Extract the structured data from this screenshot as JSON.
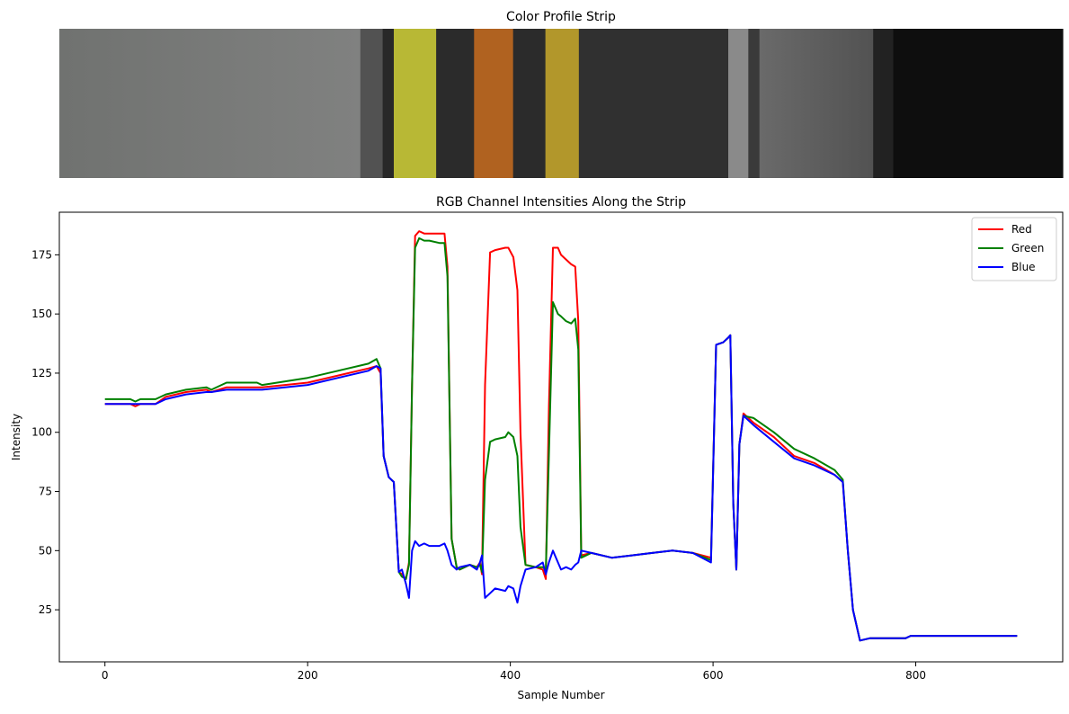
{
  "chart_data": [
    {
      "type": "heatmap",
      "title": "Color Profile Strip",
      "axis": "off",
      "x_range": [
        0,
        900
      ],
      "segments": [
        {
          "start": 0,
          "end": 270,
          "color_start": "#707270",
          "color_end": "#808180"
        },
        {
          "start": 270,
          "end": 290,
          "color_start": "#525252",
          "color_end": "#525252"
        },
        {
          "start": 290,
          "end": 300,
          "color_start": "#282828",
          "color_end": "#282828"
        },
        {
          "start": 300,
          "end": 338,
          "color_start": "#b8b835",
          "color_end": "#b8b835"
        },
        {
          "start": 338,
          "end": 372,
          "color_start": "#2b2b2b",
          "color_end": "#2b2b2b"
        },
        {
          "start": 372,
          "end": 407,
          "color_start": "#b06220",
          "color_end": "#b06220"
        },
        {
          "start": 407,
          "end": 436,
          "color_start": "#2b2b2b",
          "color_end": "#2b2b2b"
        },
        {
          "start": 436,
          "end": 466,
          "color_start": "#b2972b",
          "color_end": "#b2972b"
        },
        {
          "start": 466,
          "end": 600,
          "color_start": "#303030",
          "color_end": "#303030"
        },
        {
          "start": 600,
          "end": 618,
          "color_start": "#8a8a8a",
          "color_end": "#8a8a8a"
        },
        {
          "start": 618,
          "end": 628,
          "color_start": "#3a3a3a",
          "color_end": "#3a3a3a"
        },
        {
          "start": 628,
          "end": 730,
          "color_start": "#6a6a6a",
          "color_end": "#525252"
        },
        {
          "start": 730,
          "end": 748,
          "color_start": "#222222",
          "color_end": "#222222"
        },
        {
          "start": 748,
          "end": 900,
          "color_start": "#0e0e0e",
          "color_end": "#0e0e0e"
        }
      ]
    },
    {
      "type": "line",
      "title": "RGB Channel Intensities Along the Strip",
      "xlabel": "Sample Number",
      "ylabel": "Intensity",
      "xlim": [
        -45,
        945
      ],
      "ylim": [
        3,
        193
      ],
      "xticks": [
        0,
        200,
        400,
        600,
        800
      ],
      "yticks": [
        25,
        50,
        75,
        100,
        125,
        150,
        175
      ],
      "legend": "top-right",
      "grid": false,
      "series": [
        {
          "name": "Red",
          "color": "#ff0000",
          "x": [
            0,
            25,
            30,
            35,
            50,
            60,
            80,
            100,
            105,
            120,
            150,
            155,
            200,
            230,
            260,
            268,
            272,
            275,
            280,
            285,
            290,
            293,
            297,
            300,
            303,
            306,
            310,
            315,
            320,
            330,
            335,
            338,
            342,
            347,
            350,
            360,
            367,
            370,
            372,
            375,
            380,
            385,
            395,
            398,
            403,
            407,
            410,
            415,
            425,
            432,
            435,
            438,
            442,
            447,
            450,
            455,
            460,
            464,
            467,
            470,
            480,
            500,
            520,
            540,
            560,
            580,
            598,
            603,
            610,
            615,
            617,
            620,
            623,
            626,
            630,
            640,
            660,
            680,
            700,
            720,
            728,
            733,
            738,
            745,
            755,
            790,
            795,
            900
          ],
          "y": [
            112,
            112,
            111,
            112,
            112,
            115,
            117,
            118,
            117,
            119,
            119,
            119,
            121,
            124,
            127,
            128,
            125,
            90,
            81,
            79,
            41,
            40,
            38,
            45,
            120,
            183,
            185,
            184,
            184,
            184,
            184,
            170,
            55,
            43,
            42,
            44,
            43,
            45,
            40,
            120,
            176,
            177,
            178,
            178,
            174,
            160,
            100,
            44,
            43,
            42,
            38,
            110,
            178,
            178,
            175,
            173,
            171,
            170,
            147,
            48,
            49,
            47,
            48,
            49,
            50,
            49,
            47,
            137,
            138,
            140,
            141,
            70,
            42,
            95,
            108,
            104,
            98,
            90,
            87,
            82,
            79,
            50,
            25,
            12,
            13,
            13,
            14,
            14
          ]
        },
        {
          "name": "Green",
          "color": "#008000",
          "x": [
            0,
            25,
            30,
            35,
            50,
            60,
            80,
            100,
            105,
            120,
            150,
            155,
            200,
            230,
            260,
            268,
            272,
            275,
            280,
            285,
            290,
            293,
            297,
            300,
            303,
            306,
            310,
            315,
            320,
            330,
            335,
            338,
            342,
            347,
            350,
            360,
            367,
            370,
            372,
            375,
            380,
            385,
            395,
            398,
            403,
            407,
            410,
            415,
            425,
            432,
            435,
            438,
            442,
            447,
            450,
            455,
            460,
            464,
            467,
            470,
            480,
            500,
            520,
            540,
            560,
            580,
            598,
            603,
            610,
            615,
            617,
            620,
            623,
            626,
            630,
            640,
            660,
            680,
            700,
            720,
            728,
            733,
            738,
            745,
            755,
            790,
            795,
            900
          ],
          "y": [
            114,
            114,
            113,
            114,
            114,
            116,
            118,
            119,
            118,
            121,
            121,
            120,
            123,
            126,
            129,
            131,
            127,
            90,
            81,
            79,
            41,
            39,
            38,
            44,
            120,
            178,
            182,
            181,
            181,
            180,
            180,
            166,
            55,
            43,
            42,
            44,
            43,
            44,
            41,
            80,
            96,
            97,
            98,
            100,
            98,
            90,
            60,
            44,
            43,
            43,
            42,
            90,
            155,
            150,
            149,
            147,
            146,
            148,
            135,
            47,
            49,
            47,
            48,
            49,
            50,
            49,
            46,
            137,
            138,
            140,
            141,
            70,
            42,
            95,
            107,
            106,
            100,
            93,
            89,
            84,
            80,
            50,
            25,
            12,
            13,
            13,
            14,
            14
          ]
        },
        {
          "name": "Blue",
          "color": "#0000ff",
          "x": [
            0,
            25,
            30,
            35,
            50,
            60,
            80,
            100,
            105,
            120,
            150,
            155,
            200,
            230,
            260,
            268,
            272,
            275,
            280,
            285,
            290,
            293,
            297,
            300,
            303,
            306,
            310,
            315,
            320,
            330,
            335,
            338,
            342,
            347,
            350,
            360,
            367,
            370,
            372,
            375,
            380,
            385,
            395,
            398,
            403,
            407,
            410,
            415,
            425,
            432,
            435,
            438,
            442,
            447,
            450,
            455,
            460,
            464,
            467,
            470,
            480,
            500,
            520,
            540,
            560,
            580,
            598,
            603,
            610,
            615,
            617,
            620,
            623,
            626,
            630,
            640,
            660,
            680,
            700,
            720,
            728,
            733,
            738,
            745,
            755,
            790,
            795,
            900
          ],
          "y": [
            112,
            112,
            112,
            112,
            112,
            114,
            116,
            117,
            117,
            118,
            118,
            118,
            120,
            123,
            126,
            128,
            127,
            90,
            81,
            79,
            41,
            42,
            36,
            30,
            50,
            54,
            52,
            53,
            52,
            52,
            53,
            50,
            44,
            42,
            43,
            44,
            42,
            45,
            48,
            30,
            32,
            34,
            33,
            35,
            34,
            28,
            35,
            42,
            43,
            45,
            40,
            45,
            50,
            45,
            42,
            43,
            42,
            44,
            45,
            50,
            49,
            47,
            48,
            49,
            50,
            49,
            45,
            137,
            138,
            140,
            141,
            70,
            42,
            95,
            107,
            103,
            96,
            89,
            86,
            82,
            79,
            50,
            25,
            12,
            13,
            13,
            14,
            14
          ]
        }
      ]
    }
  ]
}
